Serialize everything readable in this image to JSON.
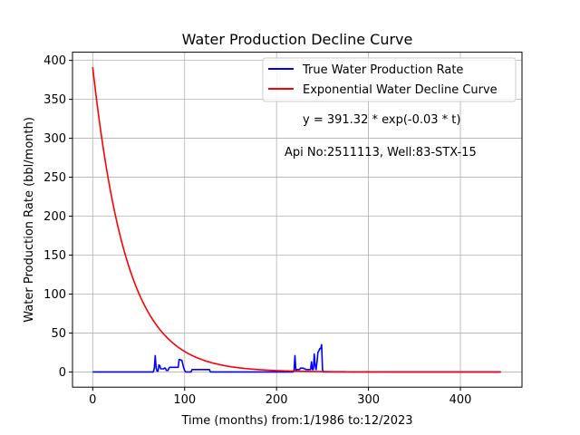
{
  "chart_data": {
    "type": "line",
    "title": "Water Production Decline Curve",
    "xlabel": "Time (months) from:1/1986 to:12/2023",
    "ylabel": "Water Production Rate (bbl/month)",
    "xlim": [
      -22,
      467
    ],
    "ylim": [
      -19.5,
      410.5
    ],
    "xticks": [
      0,
      100,
      200,
      300,
      400
    ],
    "yticks": [
      0,
      50,
      100,
      150,
      200,
      250,
      300,
      350,
      400
    ],
    "grid": true,
    "legend_position": "top-right",
    "annotations": [
      "y = 391.32 * exp(-0.03 * t)",
      "Api No:2511113, Well:83-STX-15"
    ],
    "colors": {
      "true_rate": "#0000ff",
      "exp_curve": "#ff0000",
      "grid": "#b0b0b0"
    },
    "series": [
      {
        "name": "True Water Production Rate",
        "color": "#0000ff",
        "points": [
          [
            0,
            0
          ],
          [
            66,
            0
          ],
          [
            67,
            5
          ],
          [
            68,
            21
          ],
          [
            69,
            5
          ],
          [
            70,
            1
          ],
          [
            71,
            1
          ],
          [
            72,
            9
          ],
          [
            73,
            8
          ],
          [
            74,
            4
          ],
          [
            75,
            4
          ],
          [
            76,
            4
          ],
          [
            77,
            4
          ],
          [
            78,
            5
          ],
          [
            79,
            5
          ],
          [
            80,
            2
          ],
          [
            81,
            2
          ],
          [
            82,
            2
          ],
          [
            83,
            5
          ],
          [
            84,
            6
          ],
          [
            85,
            6
          ],
          [
            86,
            6
          ],
          [
            87,
            6
          ],
          [
            88,
            6
          ],
          [
            89,
            6
          ],
          [
            90,
            6
          ],
          [
            91,
            6
          ],
          [
            92,
            6
          ],
          [
            93,
            6
          ],
          [
            94,
            16
          ],
          [
            95,
            16
          ],
          [
            96,
            15
          ],
          [
            97,
            15
          ],
          [
            98,
            10
          ],
          [
            99,
            5
          ],
          [
            100,
            2
          ],
          [
            101,
            0
          ],
          [
            102,
            0
          ],
          [
            103,
            0
          ],
          [
            104,
            0
          ],
          [
            105,
            0
          ],
          [
            106,
            0
          ],
          [
            107,
            0
          ],
          [
            108,
            3
          ],
          [
            109,
            3
          ],
          [
            110,
            3
          ],
          [
            120,
            3
          ],
          [
            127,
            3
          ],
          [
            128,
            0
          ],
          [
            218,
            0
          ],
          [
            219,
            2
          ],
          [
            220,
            21
          ],
          [
            221,
            2
          ],
          [
            222,
            3
          ],
          [
            223,
            3
          ],
          [
            224,
            3
          ],
          [
            225,
            3
          ],
          [
            226,
            5
          ],
          [
            227,
            5
          ],
          [
            228,
            5
          ],
          [
            229,
            5
          ],
          [
            230,
            4
          ],
          [
            231,
            4
          ],
          [
            232,
            3
          ],
          [
            233,
            3
          ],
          [
            234,
            3
          ],
          [
            235,
            3
          ],
          [
            236,
            3
          ],
          [
            237,
            3
          ],
          [
            238,
            13
          ],
          [
            239,
            3
          ],
          [
            240,
            3
          ],
          [
            241,
            23
          ],
          [
            242,
            8
          ],
          [
            243,
            3
          ],
          [
            244,
            13
          ],
          [
            245,
            25
          ],
          [
            246,
            27
          ],
          [
            247,
            30
          ],
          [
            248,
            30
          ],
          [
            249,
            35
          ],
          [
            250,
            3
          ],
          [
            251,
            0
          ],
          [
            444,
            0
          ]
        ]
      },
      {
        "name": "Exponential Water Decline Curve",
        "color": "#ff0000",
        "a": 391.32,
        "b": -0.027,
        "t_start": 0,
        "t_end": 444
      }
    ]
  }
}
